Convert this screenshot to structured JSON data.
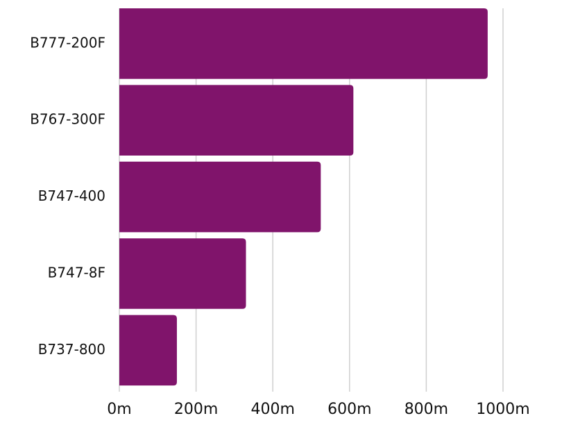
{
  "chart_data": {
    "type": "hbar",
    "categories": [
      "B777-200F",
      "B767-300F",
      "B747-400",
      "B747-8F",
      "B737-800"
    ],
    "values": [
      960,
      610,
      525,
      330,
      150
    ],
    "color": "#80146b",
    "xlim": [
      0,
      1000
    ],
    "xticks": [
      {
        "value": 0,
        "label": "0m"
      },
      {
        "value": 200,
        "label": "200m"
      },
      {
        "value": 400,
        "label": "400m"
      },
      {
        "value": 600,
        "label": "600m"
      },
      {
        "value": 800,
        "label": "800m"
      },
      {
        "value": 1000,
        "label": "1000m"
      }
    ],
    "grid": true
  }
}
